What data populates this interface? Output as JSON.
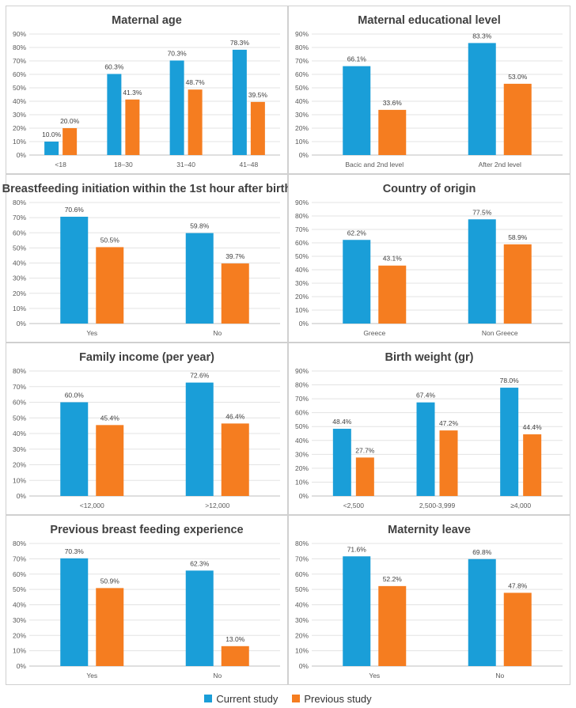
{
  "colors": {
    "current": "#1a9ed8",
    "previous": "#f57d20"
  },
  "legend": {
    "current": "Current study",
    "previous": "Previous study"
  },
  "chart_data": [
    {
      "type": "bar",
      "title": "Maternal age",
      "categories": [
        "<18",
        "18–30",
        "31–40",
        "41–48"
      ],
      "yticks": [
        "0%",
        "10%",
        "20%",
        "30%",
        "40%",
        "50%",
        "60%",
        "70%",
        "80%",
        "90%"
      ],
      "ylim": [
        0,
        90
      ],
      "series": [
        {
          "name": "Current study",
          "values": [
            10.0,
            60.3,
            70.3,
            78.3
          ],
          "labels": [
            "10.0%",
            "60.3%",
            "70.3%",
            "78.3%"
          ]
        },
        {
          "name": "Previous study",
          "values": [
            20.0,
            41.3,
            48.7,
            39.5
          ],
          "labels": [
            "20.0%",
            "41.3%",
            "48.7%",
            "39.5%"
          ]
        }
      ]
    },
    {
      "type": "bar",
      "title": "Maternal educational level",
      "categories": [
        "Bacic and 2nd level",
        "After 2nd level"
      ],
      "yticks": [
        "0%",
        "10%",
        "20%",
        "30%",
        "40%",
        "50%",
        "60%",
        "70%",
        "80%",
        "90%"
      ],
      "ylim": [
        0,
        90
      ],
      "series": [
        {
          "name": "Current study",
          "values": [
            66.1,
            83.3
          ],
          "labels": [
            "66.1%",
            "83.3%"
          ]
        },
        {
          "name": "Previous study",
          "values": [
            33.6,
            53.0
          ],
          "labels": [
            "33.6%",
            "53.0%"
          ]
        }
      ]
    },
    {
      "type": "bar",
      "title": "Breastfeeding initiation within the 1st hour after birth",
      "categories": [
        "Yes",
        "No"
      ],
      "yticks": [
        "0%",
        "10%",
        "20%",
        "30%",
        "40%",
        "50%",
        "60%",
        "70%",
        "80%"
      ],
      "ylim": [
        0,
        80
      ],
      "series": [
        {
          "name": "Current study",
          "values": [
            70.6,
            59.8
          ],
          "labels": [
            "70.6%",
            "59.8%"
          ]
        },
        {
          "name": "Previous study",
          "values": [
            50.5,
            39.7
          ],
          "labels": [
            "50.5%",
            "39.7%"
          ]
        }
      ]
    },
    {
      "type": "bar",
      "title": "Country of origin",
      "categories": [
        "Greece",
        "Non Greece"
      ],
      "yticks": [
        "0%",
        "10%",
        "20%",
        "30%",
        "40%",
        "50%",
        "60%",
        "70%",
        "80%",
        "90%"
      ],
      "ylim": [
        0,
        90
      ],
      "series": [
        {
          "name": "Current study",
          "values": [
            62.2,
            77.5
          ],
          "labels": [
            "62.2%",
            "77.5%"
          ]
        },
        {
          "name": "Previous study",
          "values": [
            43.1,
            58.9
          ],
          "labels": [
            "43.1%",
            "58.9%"
          ]
        }
      ]
    },
    {
      "type": "bar",
      "title": "Family income (per year)",
      "categories": [
        "<12,000",
        ">12,000"
      ],
      "yticks": [
        "0%",
        "10%",
        "20%",
        "30%",
        "40%",
        "50%",
        "60%",
        "70%",
        "80%"
      ],
      "ylim": [
        0,
        80
      ],
      "series": [
        {
          "name": "Current study",
          "values": [
            60.0,
            72.6
          ],
          "labels": [
            "60.0%",
            "72.6%"
          ]
        },
        {
          "name": "Previous study",
          "values": [
            45.4,
            46.4
          ],
          "labels": [
            "45.4%",
            "46.4%"
          ]
        }
      ]
    },
    {
      "type": "bar",
      "title": "Birth weight (gr)",
      "categories": [
        "<2,500",
        "2,500-3,999",
        "≥4,000"
      ],
      "yticks": [
        "0%",
        "10%",
        "20%",
        "30%",
        "40%",
        "50%",
        "60%",
        "70%",
        "80%",
        "90%"
      ],
      "ylim": [
        0,
        90
      ],
      "series": [
        {
          "name": "Current study",
          "values": [
            48.4,
            67.4,
            78.0
          ],
          "labels": [
            "48.4%",
            "67.4%",
            "78.0%"
          ]
        },
        {
          "name": "Previous study",
          "values": [
            27.7,
            47.2,
            44.4
          ],
          "labels": [
            "27.7%",
            "47.2%",
            "44.4%"
          ]
        }
      ]
    },
    {
      "type": "bar",
      "title": "Previous breast feeding experience",
      "categories": [
        "Yes",
        "No"
      ],
      "yticks": [
        "0%",
        "10%",
        "20%",
        "30%",
        "40%",
        "50%",
        "60%",
        "70%",
        "80%"
      ],
      "ylim": [
        0,
        80
      ],
      "series": [
        {
          "name": "Current study",
          "values": [
            70.3,
            62.3
          ],
          "labels": [
            "70.3%",
            "62.3%"
          ]
        },
        {
          "name": "Previous study",
          "values": [
            50.9,
            13.0
          ],
          "labels": [
            "50.9%",
            "13.0%"
          ]
        }
      ]
    },
    {
      "type": "bar",
      "title": "Maternity leave",
      "categories": [
        "Yes",
        "No"
      ],
      "yticks": [
        "0%",
        "10%",
        "20%",
        "30%",
        "40%",
        "50%",
        "60%",
        "70%",
        "80%"
      ],
      "ylim": [
        0,
        80
      ],
      "series": [
        {
          "name": "Current study",
          "values": [
            71.6,
            69.8
          ],
          "labels": [
            "71.6%",
            "69.8%"
          ]
        },
        {
          "name": "Previous study",
          "values": [
            52.2,
            47.8
          ],
          "labels": [
            "52.2%",
            "47.8%"
          ]
        }
      ]
    }
  ]
}
